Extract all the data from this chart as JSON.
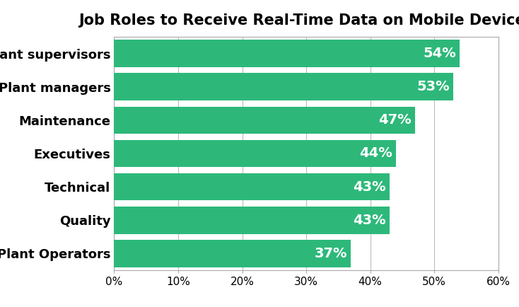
{
  "title": "Job Roles to Receive Real-Time Data on Mobile Devices",
  "categories": [
    "Plant Operators",
    "Quality",
    "Technical",
    "Executives",
    "Maintenance",
    "Plant managers",
    "Plant supervisors"
  ],
  "values": [
    37,
    43,
    43,
    44,
    47,
    53,
    54
  ],
  "bar_color": "#2db87a",
  "label_color": "#ffffff",
  "label_fontsize": 14,
  "title_fontsize": 15,
  "tick_fontsize": 11,
  "ytick_fontsize": 13,
  "xlim": [
    0,
    60
  ],
  "xticks": [
    0,
    10,
    20,
    30,
    40,
    50,
    60
  ],
  "background_color": "#ffffff",
  "grid_color": "#bbbbbb",
  "bar_height": 0.82,
  "title_fontweight": "bold",
  "spine_color": "#aaaaaa"
}
